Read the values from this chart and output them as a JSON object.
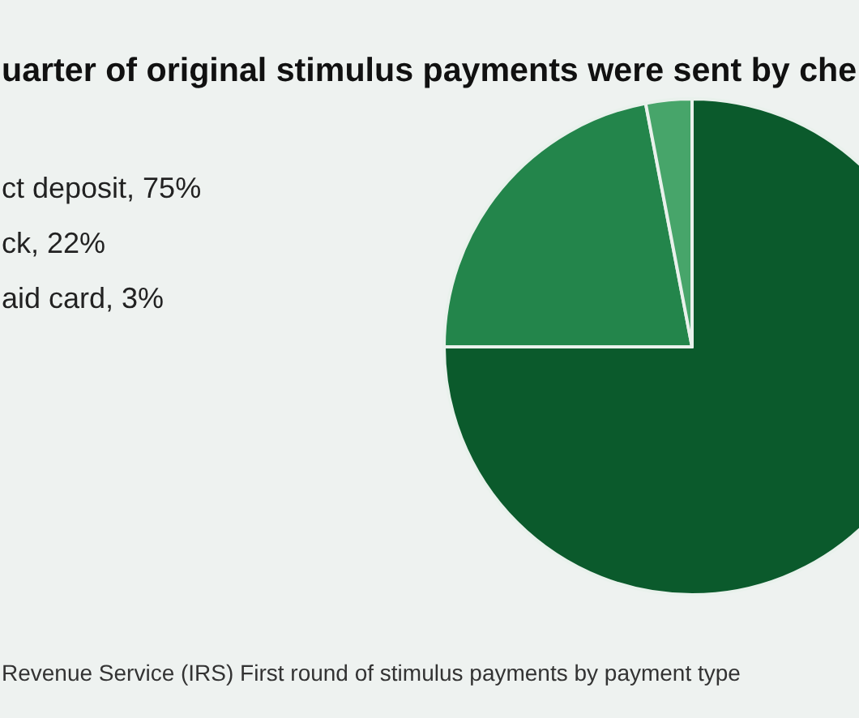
{
  "chart_data": {
    "type": "pie",
    "title": "uarter of original stimulus payments were sent by che",
    "categories": [
      null,
      null,
      null
    ],
    "values": [
      75,
      22,
      3
    ],
    "colors": [
      "#0b5a2c",
      "#23854b",
      "#47a56a"
    ],
    "annotations": [
      "ct deposit, 75%",
      "ck, 22%",
      "aid card, 3%",
      "Revenue Service (IRS) First round of stimulus payments by payment type"
    ]
  }
}
